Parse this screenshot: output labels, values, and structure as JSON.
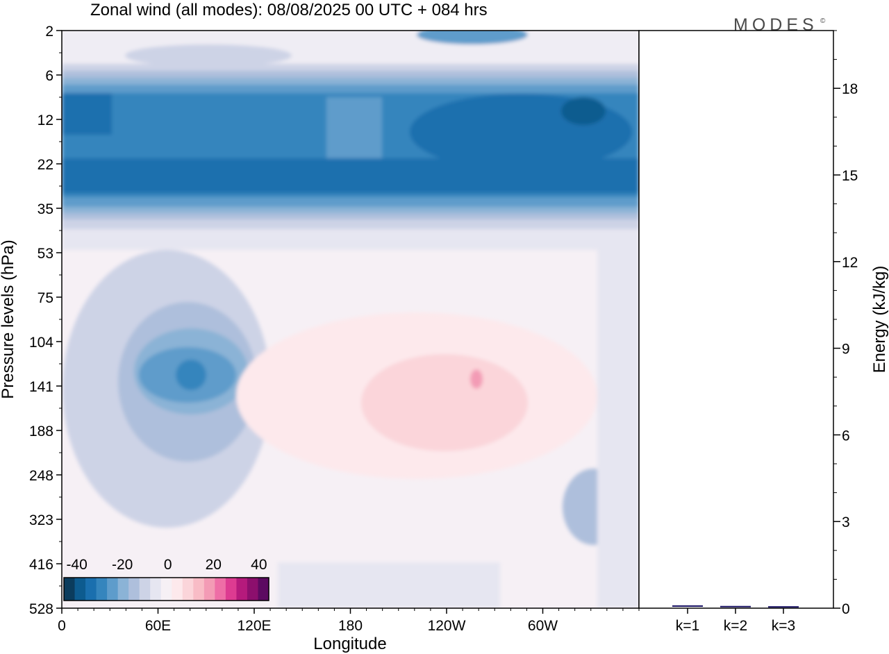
{
  "title": "Zonal wind (all modes):  08/08/2025  00 UTC  + 084 hrs",
  "logo_text": "MODES",
  "logo_mark": "©",
  "chart_data": [
    {
      "type": "heatmap",
      "xlabel": "Longitude",
      "ylabel": "Pressure levels (hPa)",
      "x_ticks": [
        "0",
        "60E",
        "120E",
        "180",
        "120W",
        "60W"
      ],
      "x_tick_degrees": [
        0,
        60,
        120,
        180,
        240,
        300
      ],
      "xlim": [
        0,
        360
      ],
      "y_ticks": [
        "2",
        "6",
        "12",
        "22",
        "35",
        "53",
        "75",
        "104",
        "141",
        "188",
        "248",
        "323",
        "416",
        "528"
      ],
      "y_scale": "categorical pressure levels, top to bottom",
      "colorbar": {
        "tick_labels": [
          "-40",
          "-20",
          "0",
          "20",
          "40"
        ],
        "tick_values": [
          -40,
          -20,
          0,
          20,
          40
        ],
        "levels": [
          -45,
          -40,
          -35,
          -30,
          -25,
          -20,
          -15,
          -10,
          -5,
          0,
          5,
          10,
          15,
          20,
          25,
          30,
          35,
          40,
          45
        ],
        "colors": [
          "#0b3c5d",
          "#0d5b8f",
          "#1a6fae",
          "#3585bd",
          "#5e9ccb",
          "#8bb3d6",
          "#aebfdc",
          "#cdd3e6",
          "#e6e6f1",
          "#f6f0f5",
          "#fde9ec",
          "#fbd5da",
          "#f8bcc6",
          "#f39bb5",
          "#ee6ea6",
          "#dd3b91",
          "#b51a7c",
          "#8c0f6d",
          "#5c0a61"
        ]
      },
      "features": [
        {
          "name": "stratospheric easterly band",
          "approx_levels": "6-35 hPa",
          "approx_value_min": -40
        },
        {
          "name": "easterly maximum over 60E-90E",
          "approx_levels": "104-248 hPa",
          "approx_value_min": -30
        },
        {
          "name": "weak westerlies over 180-60W",
          "approx_levels": "104-248 hPa",
          "approx_value_max": 15
        }
      ]
    },
    {
      "type": "bar",
      "categories": [
        "k=1",
        "k=2",
        "k=3"
      ],
      "values": [
        0.05,
        0.03,
        0.02
      ],
      "ylabel": "Energy (kJ/kg)",
      "y_ticks": [
        "0",
        "3",
        "6",
        "9",
        "12",
        "15",
        "18"
      ],
      "ylim": [
        0,
        20
      ],
      "bar_color": "#1b1464"
    }
  ]
}
